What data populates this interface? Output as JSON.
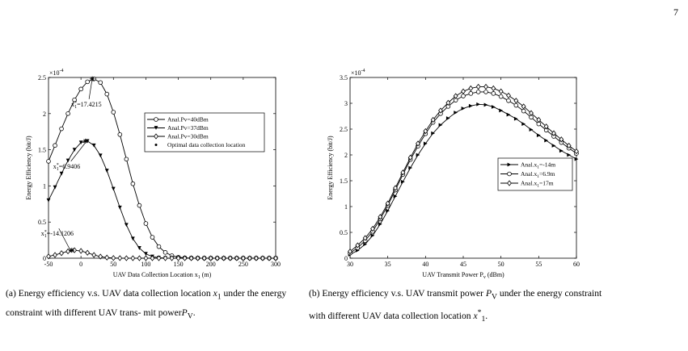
{
  "page": {
    "number": "7"
  },
  "captions": {
    "a": {
      "pre": "(a) Energy efficiency v.s. UAV data collection location ",
      "m1": "x",
      "sub1": "1",
      "mid": " under the energy constraint with different UAV trans- mit power",
      "m2": "P",
      "sub2": "V",
      "post": "."
    },
    "b": {
      "pre": "(b) Energy efficiency v.s. UAV transmit power ",
      "m1": "P",
      "sub1": "V",
      "mid": " under the energy constraint with different UAV data collection location ",
      "m2": "x",
      "sup2": "*",
      "sub2": "1",
      "post": "."
    }
  },
  "chart_data": [
    {
      "id": "a",
      "type": "line",
      "xlabel": "UAV Data Collection Location x",
      "xlabel_sub": "1",
      "xlabel_unit": " (m)",
      "ylabel": "Energy Efficiency (bit/J)",
      "y_multiplier": "×10",
      "y_multiplier_exp": "-4",
      "xlim": [
        -50,
        300
      ],
      "ylim": [
        0,
        2.5
      ],
      "xticks": [
        -50,
        0,
        50,
        100,
        150,
        200,
        250,
        300
      ],
      "yticks": [
        0,
        0.5,
        1,
        1.5,
        2,
        2.5
      ],
      "ytick_labels": [
        "0",
        "0.5",
        "1",
        "1.5",
        "2",
        "2.5"
      ],
      "x": [
        -50,
        -40,
        -30,
        -20,
        -10,
        0,
        10,
        20,
        30,
        40,
        50,
        60,
        70,
        80,
        90,
        100,
        110,
        120,
        130,
        140,
        150,
        160,
        170,
        180,
        190,
        200,
        210,
        220,
        230,
        240,
        250,
        260,
        270,
        280,
        290,
        300
      ],
      "series": [
        {
          "name": "Anal.Pv=40dBm",
          "marker": "circle",
          "values": [
            1.34,
            1.56,
            1.79,
            2.0,
            2.19,
            2.34,
            2.44,
            2.48,
            2.43,
            2.27,
            2.02,
            1.71,
            1.37,
            1.03,
            0.73,
            0.48,
            0.29,
            0.16,
            0.08,
            0.035,
            0.014,
            0.005,
            0.002,
            0.001,
            0,
            0,
            0,
            0,
            0,
            0,
            0,
            0,
            0,
            0,
            0,
            0
          ]
        },
        {
          "name": "Anal.Pv=37dBm",
          "marker": "triangle-down",
          "values": [
            0.8,
            0.98,
            1.17,
            1.35,
            1.5,
            1.6,
            1.62,
            1.56,
            1.42,
            1.21,
            0.96,
            0.7,
            0.46,
            0.27,
            0.14,
            0.06,
            0.022,
            0.007,
            0.002,
            0.001,
            0,
            0,
            0,
            0,
            0,
            0,
            0,
            0,
            0,
            0,
            0,
            0,
            0,
            0,
            0,
            0
          ]
        },
        {
          "name": "Anal.Pv=30dBm",
          "marker": "diamond",
          "values": [
            0.025,
            0.045,
            0.07,
            0.095,
            0.11,
            0.1,
            0.075,
            0.045,
            0.022,
            0.009,
            0.003,
            0.001,
            0,
            0,
            0,
            0,
            0,
            0,
            0,
            0,
            0,
            0,
            0,
            0,
            0,
            0,
            0,
            0,
            0,
            0,
            0,
            0,
            0,
            0,
            0,
            0
          ]
        },
        {
          "name": "Optimal data collection location",
          "marker": "star"
        }
      ],
      "optimal_points": [
        {
          "x": 17.4215,
          "y": 2.48,
          "label": "x",
          "label_sup": "*",
          "label_sub": "1",
          "label_val": "=17.4215"
        },
        {
          "x": 6.9406,
          "y": 1.62,
          "label": "x",
          "label_sup": "*",
          "label_sub": "1",
          "label_val": "=6.9406"
        },
        {
          "x": -14.1206,
          "y": 0.11,
          "label": "x",
          "label_sup": "*",
          "label_sub": "1",
          "label_val": "=-14.1206"
        }
      ],
      "legend_position": "upper-right"
    },
    {
      "id": "b",
      "type": "line",
      "xlabel": "UAV Transmit Power P",
      "xlabel_sub": "v",
      "xlabel_unit": " (dBm)",
      "ylabel": "Energy Efficiency (bit/J)",
      "y_multiplier": "×10",
      "y_multiplier_exp": "-4",
      "xlim": [
        30,
        60
      ],
      "ylim": [
        0,
        3.5
      ],
      "xticks": [
        30,
        35,
        40,
        45,
        50,
        55,
        60
      ],
      "yticks": [
        0,
        0.5,
        1,
        1.5,
        2,
        2.5,
        3,
        3.5
      ],
      "ytick_labels": [
        "0",
        "0.5",
        "1",
        "1.5",
        "2",
        "2.5",
        "3",
        "3.5"
      ],
      "x": [
        30,
        31,
        32,
        33,
        34,
        35,
        36,
        37,
        38,
        39,
        40,
        41,
        42,
        43,
        44,
        45,
        46,
        47,
        48,
        49,
        50,
        51,
        52,
        53,
        54,
        55,
        56,
        57,
        58,
        59,
        60
      ],
      "series": [
        {
          "name": "Anal.x",
          "name_sub": "1",
          "name_val": "=-14m",
          "marker": "triangle-right",
          "values": [
            0.07,
            0.15,
            0.27,
            0.44,
            0.66,
            0.92,
            1.2,
            1.48,
            1.75,
            2.0,
            2.22,
            2.42,
            2.58,
            2.71,
            2.82,
            2.9,
            2.95,
            2.98,
            2.97,
            2.93,
            2.86,
            2.78,
            2.7,
            2.6,
            2.49,
            2.38,
            2.28,
            2.18,
            2.08,
            2.0,
            1.92
          ]
        },
        {
          "name": "Anal.x",
          "name_sub": "1",
          "name_val": "=6.9m",
          "marker": "circle",
          "values": [
            0.1,
            0.2,
            0.34,
            0.52,
            0.76,
            1.02,
            1.32,
            1.62,
            1.91,
            2.17,
            2.41,
            2.63,
            2.8,
            2.94,
            3.06,
            3.14,
            3.19,
            3.22,
            3.22,
            3.19,
            3.13,
            3.05,
            2.96,
            2.85,
            2.73,
            2.6,
            2.48,
            2.36,
            2.24,
            2.13,
            2.03
          ]
        },
        {
          "name": "Anal.x",
          "name_sub": "1",
          "name_val": "=17m",
          "marker": "diamond",
          "values": [
            0.13,
            0.25,
            0.39,
            0.57,
            0.8,
            1.06,
            1.36,
            1.66,
            1.95,
            2.22,
            2.46,
            2.68,
            2.86,
            3.01,
            3.14,
            3.23,
            3.29,
            3.32,
            3.32,
            3.29,
            3.23,
            3.15,
            3.05,
            2.94,
            2.81,
            2.68,
            2.55,
            2.42,
            2.3,
            2.18,
            2.07
          ]
        }
      ],
      "legend_position": "center-right"
    }
  ]
}
